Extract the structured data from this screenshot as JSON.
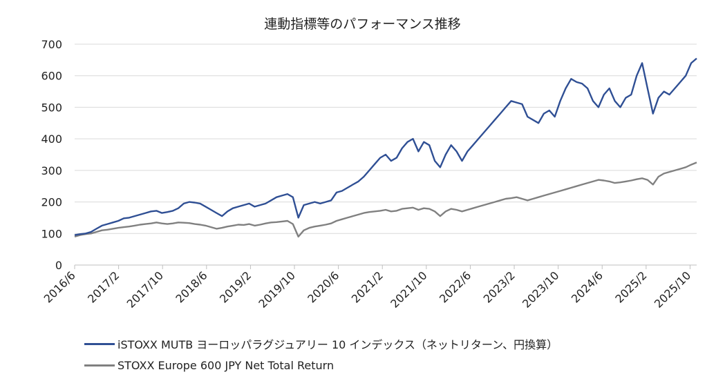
{
  "chart_data": {
    "type": "line",
    "title": "連動指標等のパフォーマンス推移",
    "xlabel": "",
    "ylabel": "",
    "ylim": [
      0,
      700
    ],
    "yticks": [
      "0",
      "100",
      "200",
      "300",
      "400",
      "500",
      "600",
      "700"
    ],
    "xticks": [
      "2016/6",
      "2017/2",
      "2017/10",
      "2018/6",
      "2019/2",
      "2019/10",
      "2020/6",
      "2021/2",
      "2021/10",
      "2022/6",
      "2023/2",
      "2023/10",
      "2024/6",
      "2025/2",
      "2025/10"
    ],
    "grid": true,
    "legend_position": "bottom",
    "series": [
      {
        "name": "iSTOXX MUTB ヨーロッパラグジュアリー 10 インデックス（ネットリターン、円換算）",
        "color": "#2f4f94",
        "x": [
          0,
          1,
          2,
          3,
          4,
          5,
          6,
          7,
          8,
          9,
          10,
          11,
          12,
          13,
          14,
          15,
          16,
          17,
          18,
          19,
          20,
          21,
          22,
          23,
          24,
          25,
          26,
          27,
          28,
          29,
          30,
          31,
          32,
          33,
          34,
          35,
          36,
          37,
          38,
          39,
          40,
          41,
          42,
          43,
          44,
          45,
          46,
          47,
          48,
          49,
          50,
          51,
          52,
          53,
          54,
          55,
          56,
          57,
          58,
          59,
          60,
          61,
          62,
          63,
          64,
          65,
          66,
          67,
          68,
          69,
          70,
          71,
          72,
          73,
          74,
          75,
          76,
          77,
          78,
          79,
          80,
          81,
          82,
          83,
          84,
          85,
          86,
          87,
          88,
          89,
          90,
          91,
          92,
          93,
          94,
          95,
          96,
          97,
          98,
          99,
          100,
          101,
          102,
          103,
          104,
          105,
          106,
          107,
          108,
          109,
          110,
          111,
          112,
          113,
          114
        ],
        "values": [
          95,
          98,
          100,
          105,
          115,
          125,
          130,
          135,
          140,
          148,
          150,
          155,
          160,
          165,
          170,
          172,
          165,
          168,
          172,
          180,
          195,
          200,
          198,
          195,
          185,
          175,
          165,
          155,
          170,
          180,
          185,
          190,
          195,
          185,
          190,
          195,
          205,
          215,
          220,
          225,
          215,
          150,
          190,
          195,
          200,
          195,
          200,
          205,
          230,
          235,
          245,
          255,
          265,
          280,
          300,
          320,
          340,
          350,
          330,
          340,
          370,
          390,
          400,
          360,
          390,
          380,
          330,
          310,
          350,
          380,
          360,
          330,
          360,
          380,
          400,
          420,
          440,
          460,
          480,
          500,
          520,
          515,
          510,
          470,
          460,
          450,
          480,
          490,
          470,
          520,
          560,
          590,
          580,
          575,
          560,
          520,
          500,
          540,
          560,
          520,
          500,
          530,
          540,
          600,
          640,
          560,
          480,
          530,
          550,
          540,
          560,
          580,
          600,
          640,
          655
        ]
      },
      {
        "name": "STOXX Europe 600 JPY Net Total Return",
        "color": "#808080",
        "x": [
          0,
          1,
          2,
          3,
          4,
          5,
          6,
          7,
          8,
          9,
          10,
          11,
          12,
          13,
          14,
          15,
          16,
          17,
          18,
          19,
          20,
          21,
          22,
          23,
          24,
          25,
          26,
          27,
          28,
          29,
          30,
          31,
          32,
          33,
          34,
          35,
          36,
          37,
          38,
          39,
          40,
          41,
          42,
          43,
          44,
          45,
          46,
          47,
          48,
          49,
          50,
          51,
          52,
          53,
          54,
          55,
          56,
          57,
          58,
          59,
          60,
          61,
          62,
          63,
          64,
          65,
          66,
          67,
          68,
          69,
          70,
          71,
          72,
          73,
          74,
          75,
          76,
          77,
          78,
          79,
          80,
          81,
          82,
          83,
          84,
          85,
          86,
          87,
          88,
          89,
          90,
          91,
          92,
          93,
          94,
          95,
          96,
          97,
          98,
          99,
          100,
          101,
          102,
          103,
          104,
          105,
          106,
          107,
          108,
          109,
          110,
          111,
          112,
          113,
          114
        ],
        "values": [
          90,
          95,
          98,
          100,
          105,
          110,
          112,
          115,
          118,
          120,
          122,
          125,
          128,
          130,
          132,
          135,
          132,
          130,
          132,
          135,
          134,
          133,
          130,
          128,
          125,
          120,
          115,
          118,
          122,
          125,
          128,
          127,
          130,
          125,
          128,
          132,
          135,
          136,
          138,
          140,
          130,
          90,
          110,
          118,
          122,
          125,
          128,
          132,
          140,
          145,
          150,
          155,
          160,
          165,
          168,
          170,
          172,
          175,
          170,
          172,
          178,
          180,
          182,
          175,
          180,
          178,
          170,
          155,
          170,
          178,
          175,
          170,
          175,
          180,
          185,
          190,
          195,
          200,
          205,
          210,
          212,
          215,
          210,
          205,
          210,
          215,
          220,
          225,
          230,
          235,
          240,
          245,
          250,
          255,
          260,
          265,
          270,
          268,
          265,
          260,
          262,
          265,
          268,
          272,
          275,
          270,
          255,
          280,
          290,
          295,
          300,
          305,
          310,
          318,
          325
        ]
      }
    ]
  }
}
